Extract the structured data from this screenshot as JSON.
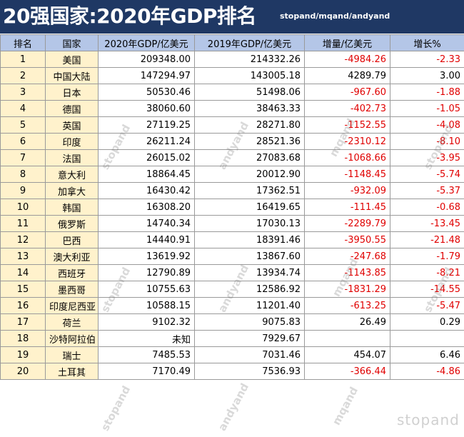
{
  "title": "20强国家:2020年GDP排名",
  "credit": "stopand/mqand/andyand",
  "columns": [
    "排名",
    "国家",
    "2020年GDP/亿美元",
    "2019年GDP/亿美元",
    "增量/亿美元",
    "增长%"
  ],
  "rows": [
    [
      "1",
      "美国",
      "209348.00",
      "214332.26",
      "-4984.26",
      "-2.33"
    ],
    [
      "2",
      "中国大陆",
      "147294.97",
      "143005.18",
      "4289.79",
      "3.00"
    ],
    [
      "3",
      "日本",
      "50530.46",
      "51498.06",
      "-967.60",
      "-1.88"
    ],
    [
      "4",
      "德国",
      "38060.60",
      "38463.33",
      "-402.73",
      "-1.05"
    ],
    [
      "5",
      "英国",
      "27119.25",
      "28271.80",
      "-1152.55",
      "-4.08"
    ],
    [
      "6",
      "印度",
      "26211.24",
      "28521.36",
      "-2310.12",
      "-8.10"
    ],
    [
      "7",
      "法国",
      "26015.02",
      "27083.68",
      "-1068.66",
      "-3.95"
    ],
    [
      "8",
      "意大利",
      "18864.45",
      "20012.90",
      "-1148.45",
      "-5.74"
    ],
    [
      "9",
      "加拿大",
      "16430.42",
      "17362.51",
      "-932.09",
      "-5.37"
    ],
    [
      "10",
      "韩国",
      "16308.20",
      "16419.65",
      "-111.45",
      "-0.68"
    ],
    [
      "11",
      "俄罗斯",
      "14740.34",
      "17030.13",
      "-2289.79",
      "-13.45"
    ],
    [
      "12",
      "巴西",
      "14440.91",
      "18391.46",
      "-3950.55",
      "-21.48"
    ],
    [
      "13",
      "澳大利亚",
      "13619.92",
      "13867.60",
      "-247.68",
      "-1.79"
    ],
    [
      "14",
      "西班牙",
      "12790.89",
      "13934.74",
      "-1143.85",
      "-8.21"
    ],
    [
      "15",
      "墨西哥",
      "10755.63",
      "12586.92",
      "-1831.29",
      "-14.55"
    ],
    [
      "16",
      "印度尼西亚",
      "10588.15",
      "11201.40",
      "-613.25",
      "-5.47"
    ],
    [
      "17",
      "荷兰",
      "9102.32",
      "9075.83",
      "26.49",
      "0.29"
    ],
    [
      "18",
      "沙特阿拉伯",
      "未知",
      "7929.67",
      "",
      ""
    ],
    [
      "19",
      "瑞士",
      "7485.53",
      "7031.46",
      "454.07",
      "6.46"
    ],
    [
      "20",
      "土耳其",
      "7170.49",
      "7536.93",
      "-366.44",
      "-4.86"
    ]
  ],
  "watermarks": [
    "stopand",
    "andyand",
    "mqand",
    "stopand"
  ],
  "colors": {
    "header_bg": "#1f3864",
    "col_header_bg": "#b4c6e7",
    "rank_bg": "#fff2cc",
    "negative": "#e00000"
  }
}
